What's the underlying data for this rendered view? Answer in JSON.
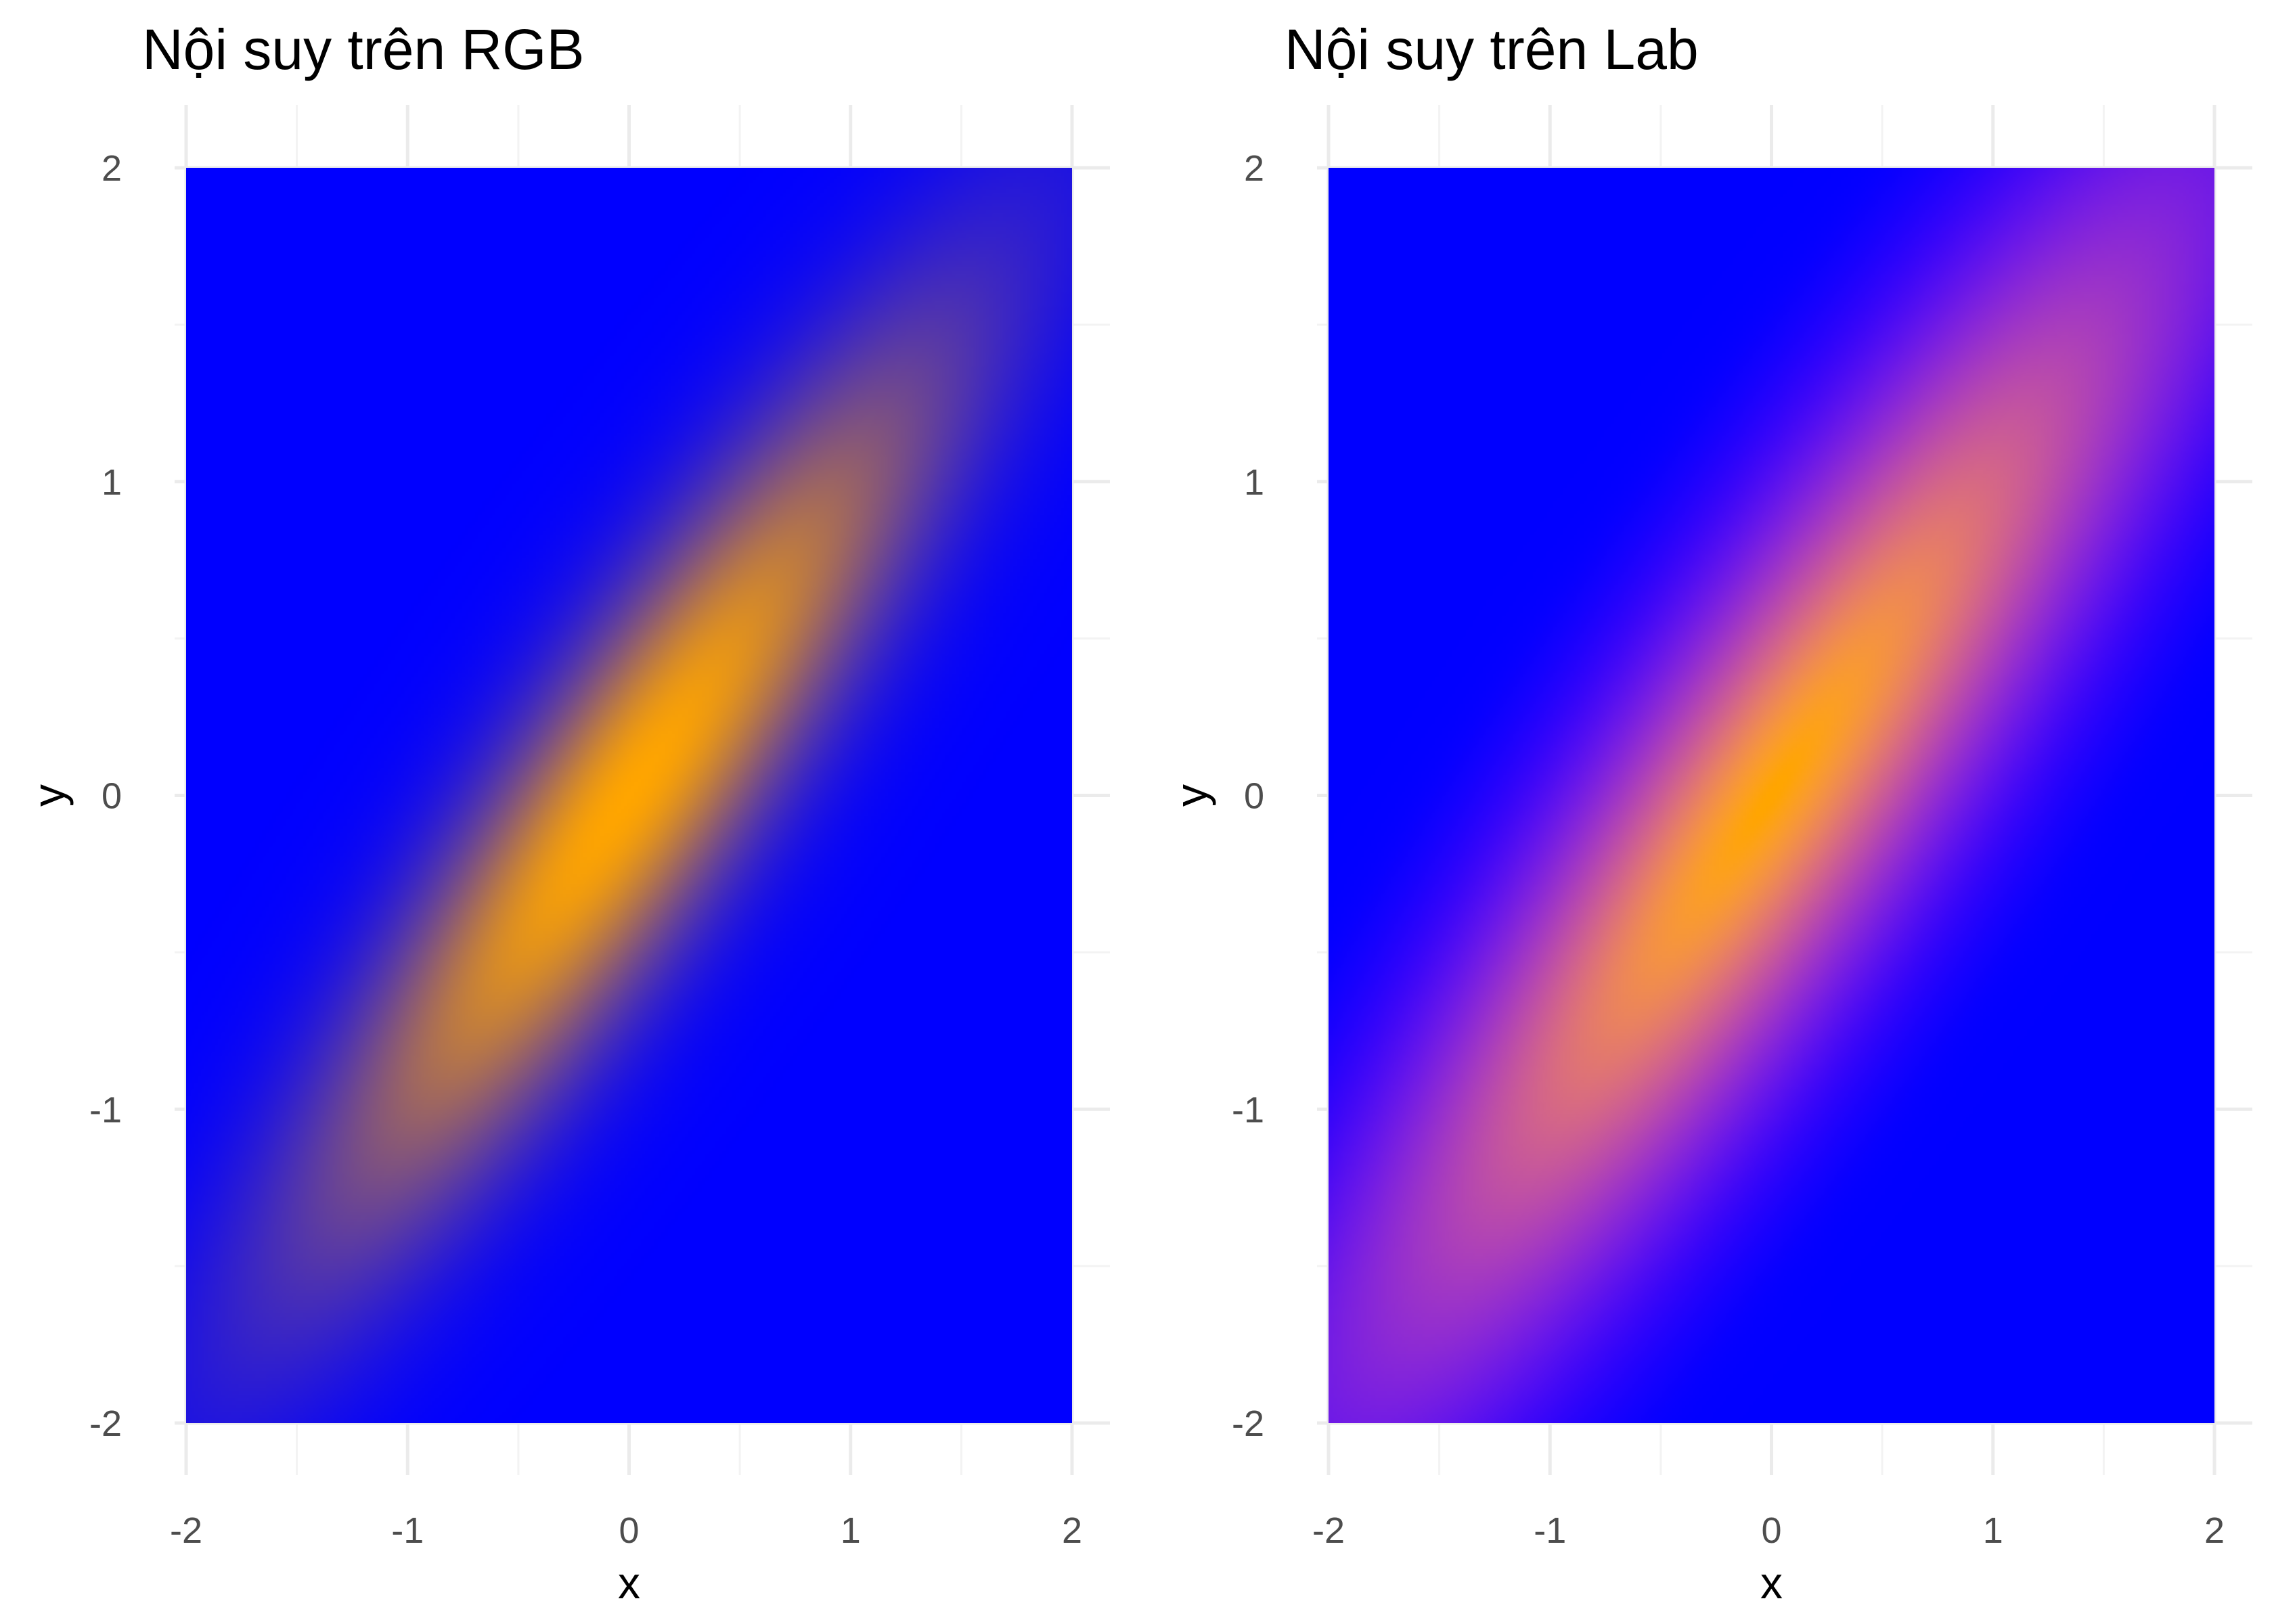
{
  "chart_data": [
    {
      "type": "heatmap",
      "title": "Nội suy trên RGB",
      "xlabel": "x",
      "ylabel": "y",
      "xlim": [
        -2,
        2
      ],
      "ylim": [
        -2,
        2
      ],
      "x_ticks": [
        "-2",
        "-1",
        "0",
        "1",
        "2"
      ],
      "y_ticks": [
        "-2",
        "-1",
        "0",
        "1",
        "2"
      ],
      "interpolation_space": "RGB",
      "color_low": "#0000ff",
      "color_high": "#ffa500",
      "grid": true,
      "legend": "none",
      "density": {
        "mean": [
          0,
          0
        ],
        "sd_x": 1,
        "sd_y": 1,
        "rho": 0.9
      }
    },
    {
      "type": "heatmap",
      "title": "Nội suy trên Lab",
      "xlabel": "x",
      "ylabel": "y",
      "xlim": [
        -2,
        2
      ],
      "ylim": [
        -2,
        2
      ],
      "x_ticks": [
        "-2",
        "-1",
        "0",
        "1",
        "2"
      ],
      "y_ticks": [
        "-2",
        "-1",
        "0",
        "1",
        "2"
      ],
      "interpolation_space": "Lab",
      "color_low": "#0000ff",
      "color_high": "#ffa500",
      "grid": true,
      "legend": "none",
      "density": {
        "mean": [
          0,
          0
        ],
        "sd_x": 1,
        "sd_y": 1,
        "rho": 0.9
      }
    }
  ]
}
